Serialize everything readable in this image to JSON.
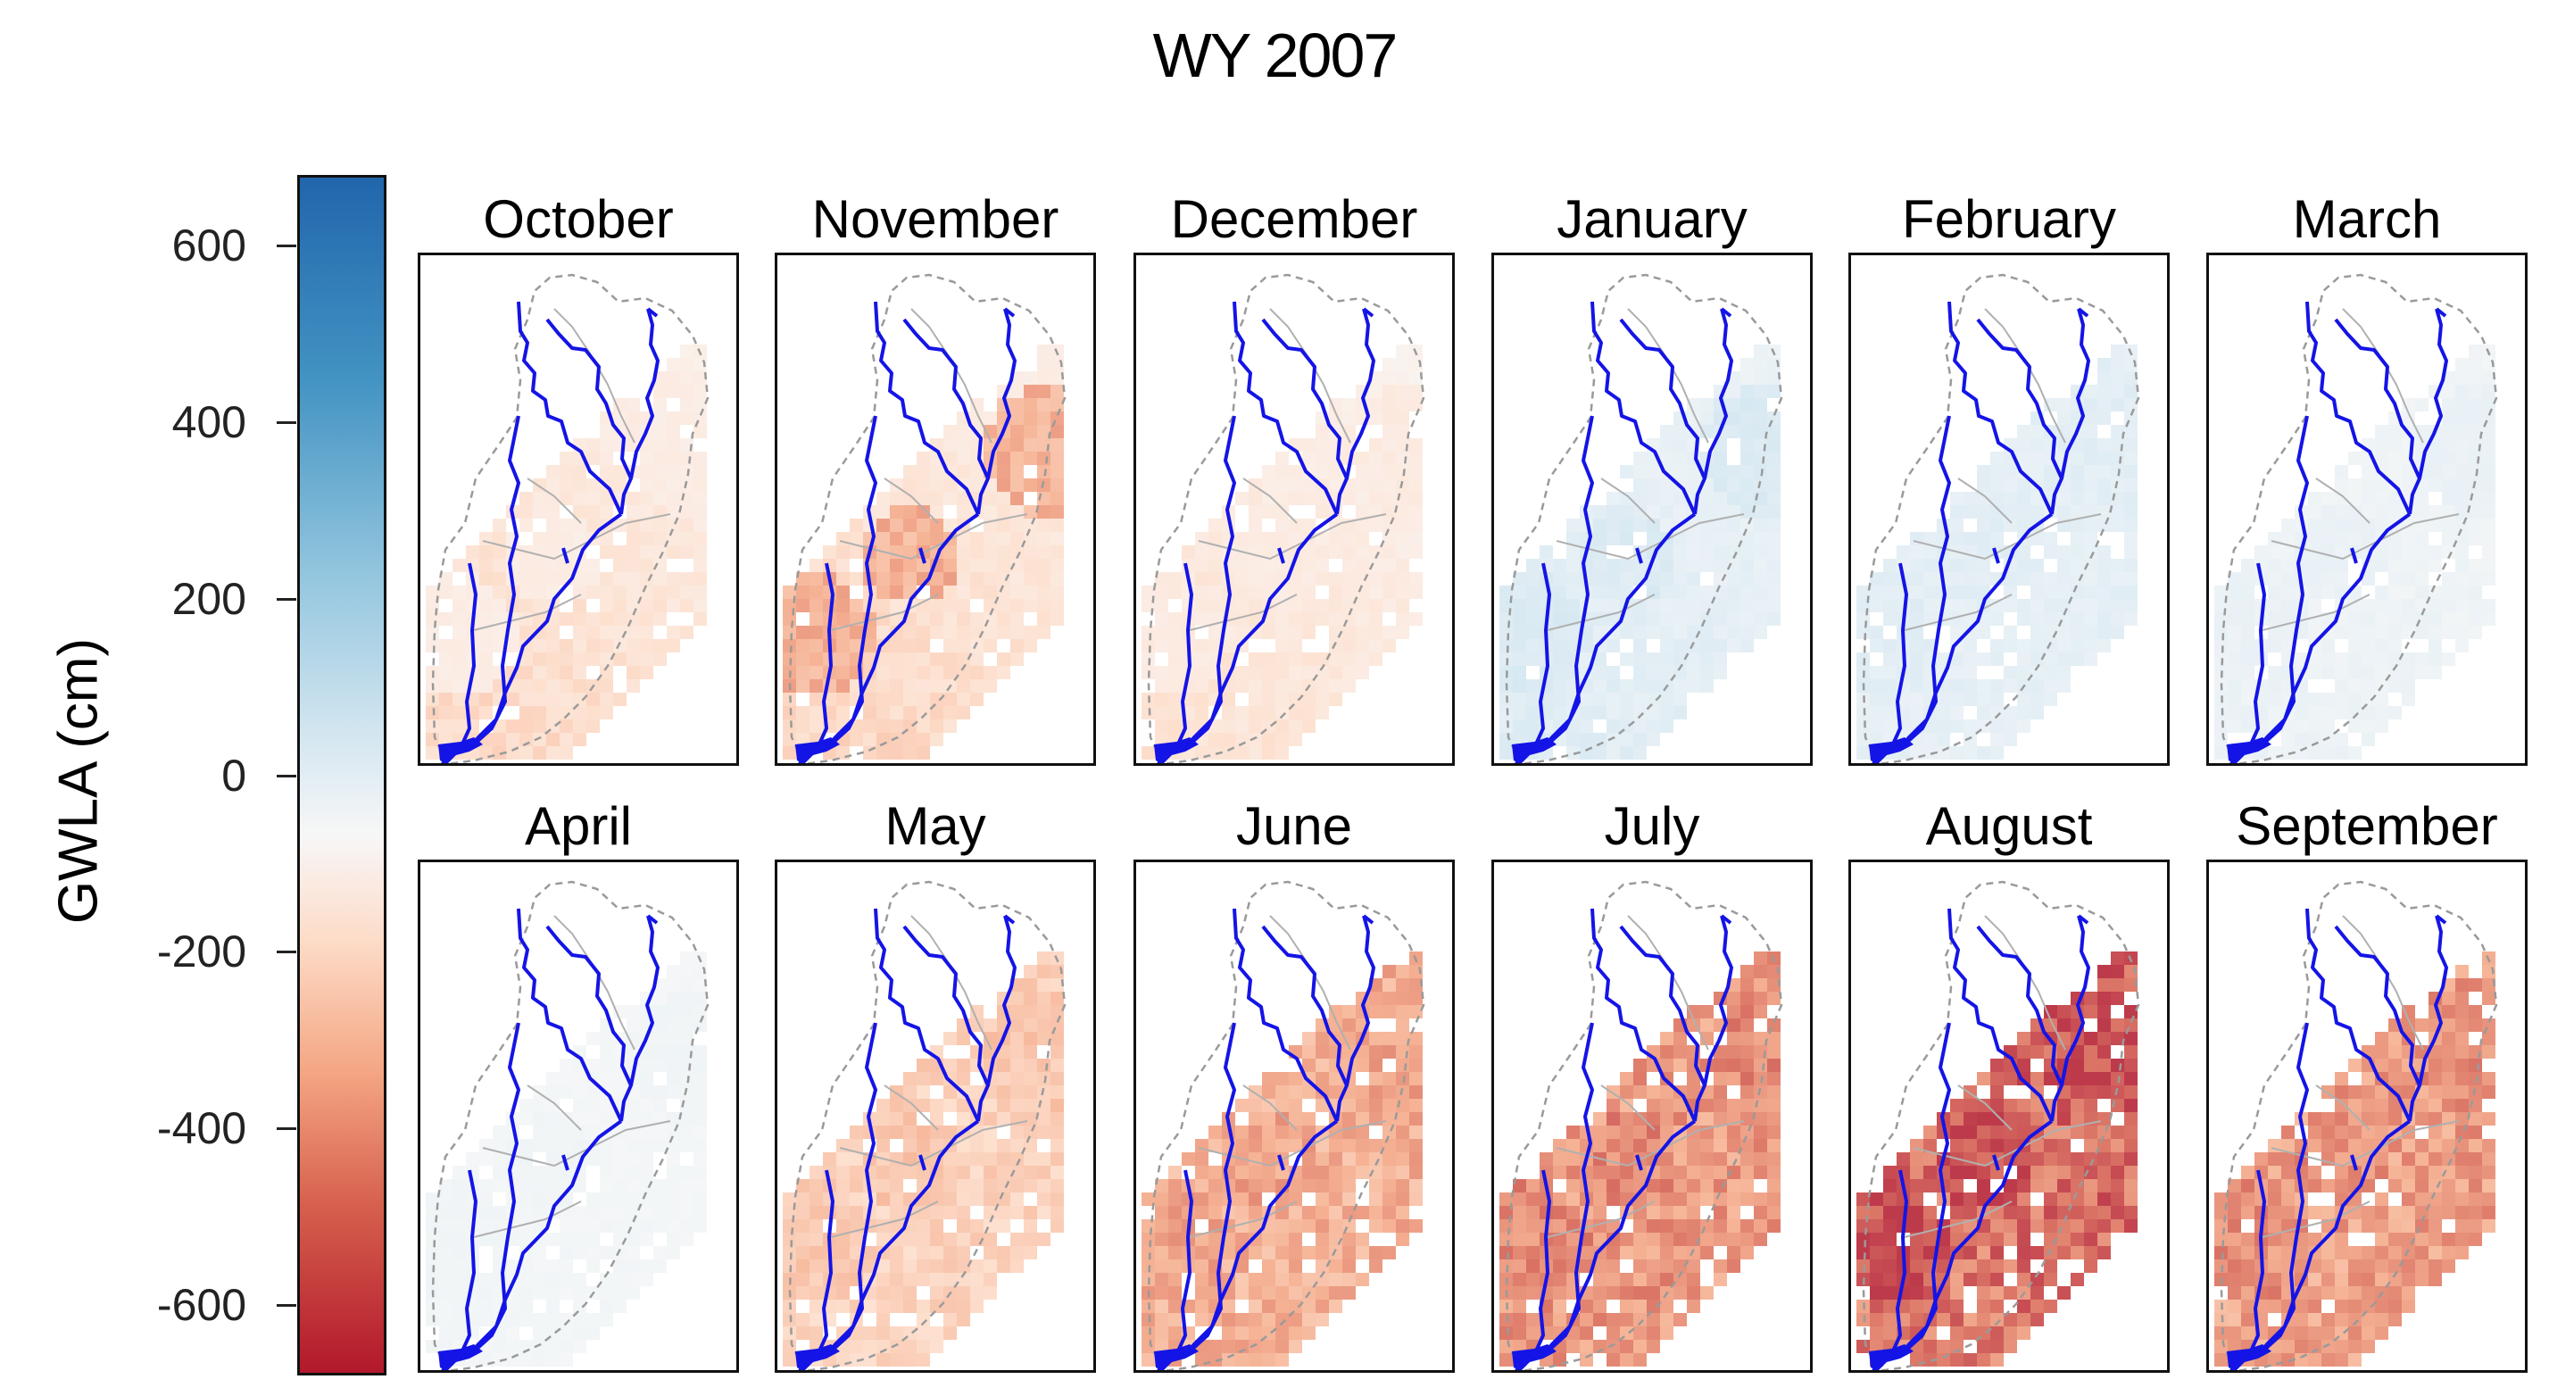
{
  "chart_data": {
    "type": "heatmap",
    "title": "WY 2007",
    "colorbar": {
      "label": "GWLA (cm)",
      "ticks": [
        "600",
        "400",
        "200",
        "0",
        "-200",
        "-400",
        "-600"
      ],
      "tick_values": [
        600,
        400,
        200,
        0,
        -200,
        -400,
        -600
      ],
      "range": [
        -680,
        680
      ],
      "colors": {
        "positive": "#2166ac",
        "neutral": "#f7f7f7",
        "negative": "#b2182b"
      }
    },
    "panels": [
      {
        "month": "October",
        "south_gwla": -180,
        "north_gwla": -60,
        "hot_gwla": -80
      },
      {
        "month": "November",
        "south_gwla": -190,
        "north_gwla": -70,
        "hot_gwla": -320
      },
      {
        "month": "December",
        "south_gwla": -140,
        "north_gwla": -40,
        "hot_gwla": -90
      },
      {
        "month": "January",
        "south_gwla": 120,
        "north_gwla": 60,
        "hot_gwla": 140
      },
      {
        "month": "February",
        "south_gwla": 90,
        "north_gwla": 100,
        "hot_gwla": 110
      },
      {
        "month": "March",
        "south_gwla": 60,
        "north_gwla": 40,
        "hot_gwla": 70
      },
      {
        "month": "April",
        "south_gwla": 30,
        "north_gwla": 20,
        "hot_gwla": 40
      },
      {
        "month": "May",
        "south_gwla": -200,
        "north_gwla": -230,
        "hot_gwla": -250
      },
      {
        "month": "June",
        "south_gwla": -320,
        "north_gwla": -330,
        "hot_gwla": -360
      },
      {
        "month": "July",
        "south_gwla": -400,
        "north_gwla": -380,
        "hot_gwla": -440
      },
      {
        "month": "August",
        "south_gwla": -470,
        "north_gwla": -560,
        "hot_gwla": -600
      },
      {
        "month": "September",
        "south_gwla": -360,
        "north_gwla": -400,
        "hot_gwla": -420
      }
    ]
  }
}
